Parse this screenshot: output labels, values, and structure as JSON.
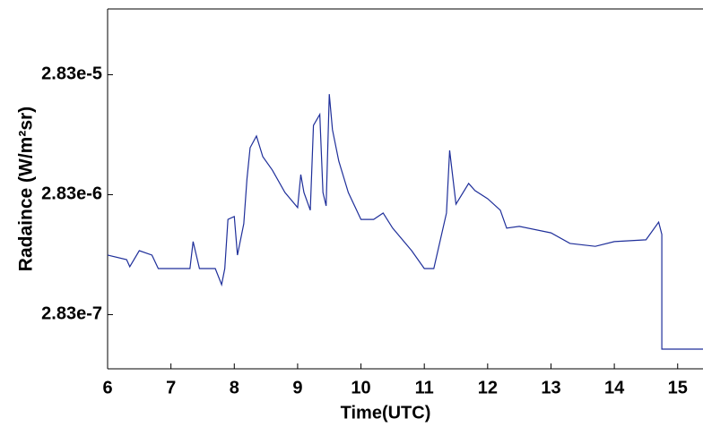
{
  "chart_data": {
    "type": "line",
    "y_label": "Radaince (W/m²sr)",
    "x_label": "Time(UTC)",
    "x": [
      6.0,
      6.3,
      6.35,
      6.5,
      6.7,
      6.8,
      7.3,
      7.35,
      7.45,
      7.7,
      7.8,
      7.85,
      7.9,
      8.0,
      8.05,
      8.15,
      8.2,
      8.25,
      8.35,
      8.45,
      8.6,
      8.8,
      9.0,
      9.05,
      9.1,
      9.2,
      9.25,
      9.35,
      9.4,
      9.45,
      9.5,
      9.55,
      9.65,
      9.8,
      10.0,
      10.2,
      10.35,
      10.5,
      10.8,
      11.0,
      11.15,
      11.35,
      11.4,
      11.5,
      11.7,
      11.8,
      12.0,
      12.2,
      12.3,
      12.5,
      13.0,
      13.3,
      13.7,
      14.0,
      14.5,
      14.7,
      14.75,
      14.75,
      15.4
    ],
    "series": [
      {
        "color": "#1f2f9a",
        "values": [
          8.87e-07,
          8.13e-07,
          7.1e-07,
          9.66e-07,
          8.87e-07,
          6.85e-07,
          6.85e-07,
          1.15e-06,
          6.85e-07,
          6.85e-07,
          5.03e-07,
          6.85e-07,
          1.76e-06,
          1.86e-06,
          8.87e-07,
          1.62e-06,
          3.82e-06,
          6.97e-06,
          8.72e-06,
          5.87e-06,
          4.54e-06,
          2.95e-06,
          2.21e-06,
          4.16e-06,
          2.95e-06,
          2.1e-06,
          1.07e-05,
          1.32e-05,
          2.95e-06,
          2.28e-06,
          1.95e-05,
          9.84e-06,
          5.39e-06,
          2.95e-06,
          1.76e-06,
          1.76e-06,
          1.99e-06,
          1.49e-06,
          9.66e-07,
          6.85e-07,
          6.85e-07,
          1.99e-06,
          6.62e-06,
          2.36e-06,
          3.51e-06,
          3.06e-06,
          2.62e-06,
          2.1e-06,
          1.49e-06,
          1.54e-06,
          1.36e-06,
          1.11e-06,
          1.05e-06,
          1.15e-06,
          1.19e-06,
          1.67e-06,
          1.32e-06,
          1.46e-07,
          1.46e-07
        ]
      }
    ],
    "xlim": [
      6,
      15.4
    ],
    "xticks": [
      6,
      7,
      8,
      9,
      10,
      11,
      12,
      13,
      14,
      15
    ],
    "ylim": [
      1e-07,
      0.0001
    ],
    "ylog": true,
    "yticks": [
      {
        "value": 2.83e-07,
        "label": "2.83e-7"
      },
      {
        "value": 2.83e-06,
        "label": "2.83e-6"
      },
      {
        "value": 2.83e-05,
        "label": "2.83e-5"
      }
    ]
  }
}
